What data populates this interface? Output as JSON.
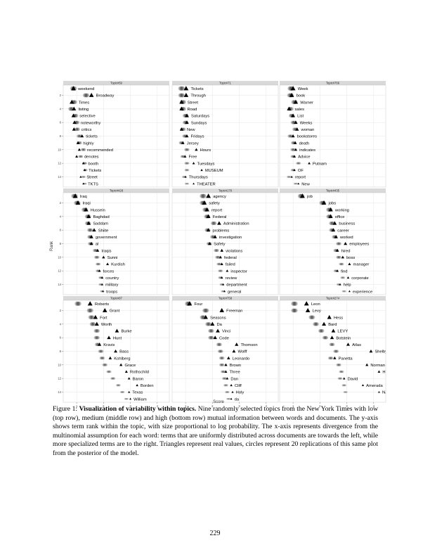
{
  "page": {
    "number": "229"
  },
  "caption": {
    "label": "Figure 1:",
    "bold": "Visualization of variability within topics.",
    "text": "Nine randomly selected topics from the New York Times with low (top row), medium (middle row) and high (bottom row) mutual information between words and documents. The y-axis shows term rank within the topic, with size proportional to log probability. The x-axis represents divergence from the multinomial assumption for each word: terms that are uniformly distributed across documents are towards the left, while more specialized terms are to the right. Triangles represent real values, circles represent 20 replications of this same plot from the posterior of the model."
  },
  "chart_data": {
    "type": "scatter",
    "xlabel": "Score",
    "ylabel": "Rank",
    "xticks": [
      "1",
      "2",
      "3",
      "4"
    ],
    "yticks": [
      "2",
      "4",
      "6",
      "8",
      "10",
      "12",
      "14"
    ],
    "xlim": [
      0.5,
      4.45
    ],
    "ylim": [
      0.5,
      15.5
    ],
    "grid": true,
    "facet_strip_color": "#d9d9d9",
    "panel_background": "#ffffff",
    "grid_color": "#e6e6e6",
    "marker_color": "#000000",
    "panels": [
      {
        "title": "Topic#59",
        "terms": [
          {
            "rank": 1,
            "term": "weekend",
            "real": 0.88,
            "reps": 0.88
          },
          {
            "rank": 2,
            "term": "Broadway",
            "real": 1.55,
            "reps": 1.35
          },
          {
            "rank": 3,
            "term": "Times",
            "real": 0.82,
            "reps": 0.9
          },
          {
            "rank": 4,
            "term": "listing",
            "real": 0.9,
            "reps": 0.8
          },
          {
            "rank": 5,
            "term": "selective",
            "real": 0.88,
            "reps": 0.95
          },
          {
            "rank": 6,
            "term": "noteworthy",
            "real": 0.92,
            "reps": 1.0
          },
          {
            "rank": 7,
            "term": "critics",
            "real": 0.9,
            "reps": 1.02
          },
          {
            "rank": 8,
            "term": "tickets",
            "real": 1.2,
            "reps": 1.1
          },
          {
            "rank": 9,
            "term": "highly",
            "real": 1.05,
            "reps": 1.1
          },
          {
            "rank": 10,
            "term": "recommended",
            "real": 1.1,
            "reps": 1.25
          },
          {
            "rank": 11,
            "term": "denotes",
            "real": 1.0,
            "reps": 1.15
          },
          {
            "rank": 12,
            "term": "booth",
            "real": 1.25,
            "reps": 1.3
          },
          {
            "rank": 13,
            "term": "Tickets",
            "real": 1.3,
            "reps": 1.32
          },
          {
            "rank": 14,
            "term": "Street",
            "real": 1.15,
            "reps": 1.25
          },
          {
            "rank": 15,
            "term": "TKTS",
            "real": 1.25,
            "reps": 1.3
          }
        ]
      },
      {
        "title": "Topic#71",
        "terms": [
          {
            "rank": 1,
            "term": "Tickets",
            "real": 1.02,
            "reps": 0.85
          },
          {
            "rank": 2,
            "term": "Through",
            "real": 1.02,
            "reps": 0.85
          },
          {
            "rank": 3,
            "term": "Street",
            "real": 0.85,
            "reps": 0.9
          },
          {
            "rank": 4,
            "term": "Road",
            "real": 0.85,
            "reps": 0.9
          },
          {
            "rank": 5,
            "term": "Saturdays",
            "real": 1.05,
            "reps": 1.0
          },
          {
            "rank": 6,
            "term": "Sundays",
            "real": 1.05,
            "reps": 1.0
          },
          {
            "rank": 7,
            "term": "New",
            "real": 0.85,
            "reps": 0.9
          },
          {
            "rank": 8,
            "term": "Fridays",
            "real": 1.05,
            "reps": 0.98
          },
          {
            "rank": 9,
            "term": "Jersey",
            "real": 0.9,
            "reps": 0.85
          },
          {
            "rank": 10,
            "term": "Hours",
            "real": 1.4,
            "reps": 1.05
          },
          {
            "rank": 11,
            "term": "Free",
            "real": 0.98,
            "reps": 0.9
          },
          {
            "rank": 12,
            "term": "Tuesdays",
            "real": 1.3,
            "reps": 1.05
          },
          {
            "rank": 13,
            "term": "MUSEUM",
            "real": 1.6,
            "reps": 1.05
          },
          {
            "rank": 14,
            "term": "Thursdays",
            "real": 1.0,
            "reps": 0.95
          },
          {
            "rank": 15,
            "term": "THEATER",
            "real": 1.3,
            "reps": 1.05
          }
        ]
      },
      {
        "title": "Topic#766",
        "terms": [
          {
            "rank": 1,
            "term": "Week",
            "real": 1.0,
            "reps": 0.92
          },
          {
            "rank": 2,
            "term": "book",
            "real": 0.95,
            "reps": 0.9
          },
          {
            "rank": 3,
            "term": "Warner",
            "real": 1.1,
            "reps": 1.05
          },
          {
            "rank": 4,
            "term": "sales",
            "real": 0.85,
            "reps": 0.9
          },
          {
            "rank": 5,
            "term": "List",
            "real": 1.0,
            "reps": 0.95
          },
          {
            "rank": 6,
            "term": "Weeks",
            "real": 1.1,
            "reps": 1.02
          },
          {
            "rank": 7,
            "term": "woman",
            "real": 1.15,
            "reps": 1.08
          },
          {
            "rank": 8,
            "term": "bookstores",
            "real": 1.0,
            "reps": 0.9
          },
          {
            "rank": 9,
            "term": "death",
            "real": 1.08,
            "reps": 1.02
          },
          {
            "rank": 10,
            "term": "indicates",
            "real": 1.1,
            "reps": 1.0
          },
          {
            "rank": 11,
            "term": "Advice",
            "real": 1.05,
            "reps": 1.0
          },
          {
            "rank": 12,
            "term": "Putnam",
            "real": 1.6,
            "reps": 1.2
          },
          {
            "rank": 13,
            "term": "OF",
            "real": 1.05,
            "reps": 1.0
          },
          {
            "rank": 14,
            "term": "report",
            "real": 0.95,
            "reps": 0.85
          },
          {
            "rank": 15,
            "term": "New",
            "real": 1.2,
            "reps": 1.1
          }
        ]
      },
      {
        "title": "Topic#428",
        "terms": [
          {
            "rank": 1,
            "term": "Iraq",
            "real": 0.95,
            "reps": 0.92
          },
          {
            "rank": 2,
            "term": "Iraqi",
            "real": 1.05,
            "reps": 1.02
          },
          {
            "rank": 3,
            "term": "Hussein",
            "real": 1.35,
            "reps": 1.3
          },
          {
            "rank": 4,
            "term": "Baghdad",
            "real": 1.45,
            "reps": 1.42
          },
          {
            "rank": 5,
            "term": "Saddam",
            "real": 1.45,
            "reps": 1.42
          },
          {
            "rank": 6,
            "term": "Shiite",
            "real": 1.65,
            "reps": 1.5
          },
          {
            "rank": 7,
            "term": "government",
            "real": 1.55,
            "reps": 1.5
          },
          {
            "rank": 8,
            "term": "al",
            "real": 1.55,
            "reps": 1.52
          },
          {
            "rank": 9,
            "term": "Iraqis",
            "real": 1.78,
            "reps": 1.7
          },
          {
            "rank": 10,
            "term": "Sunni",
            "real": 2.0,
            "reps": 1.75
          },
          {
            "rank": 11,
            "term": "Kurdish",
            "real": 2.15,
            "reps": 1.8
          },
          {
            "rank": 12,
            "term": "forces",
            "real": 1.85,
            "reps": 1.8
          },
          {
            "rank": 13,
            "term": "country",
            "real": 1.95,
            "reps": 1.9
          },
          {
            "rank": 14,
            "term": "military",
            "real": 1.95,
            "reps": 1.9
          },
          {
            "rank": 15,
            "term": "troops",
            "real": 1.98,
            "reps": 1.95
          }
        ]
      },
      {
        "title": "Topic#176",
        "terms": [
          {
            "rank": 1,
            "term": "agency",
            "real": 1.85,
            "reps": 1.65
          },
          {
            "rank": 2,
            "term": "safety",
            "real": 1.7,
            "reps": 1.65
          },
          {
            "rank": 3,
            "term": "report",
            "real": 1.8,
            "reps": 1.75
          },
          {
            "rank": 4,
            "term": "Federal",
            "real": 1.85,
            "reps": 1.8
          },
          {
            "rank": 5,
            "term": "Administration",
            "real": 2.25,
            "reps": 2.05
          },
          {
            "rank": 6,
            "term": "problems",
            "real": 1.85,
            "reps": 1.82
          },
          {
            "rank": 7,
            "term": "investigation",
            "real": 2.1,
            "reps": 2.02
          },
          {
            "rank": 8,
            "term": "Safety",
            "real": 1.9,
            "reps": 1.88
          },
          {
            "rank": 9,
            "term": "violations",
            "real": 2.35,
            "reps": 2.15
          },
          {
            "rank": 10,
            "term": "federal",
            "real": 2.3,
            "reps": 2.2
          },
          {
            "rank": 11,
            "term": "failed",
            "real": 2.35,
            "reps": 2.25
          },
          {
            "rank": 12,
            "term": "inspector",
            "real": 2.55,
            "reps": 2.3
          },
          {
            "rank": 13,
            "term": "review",
            "real": 2.35,
            "reps": 2.3
          },
          {
            "rank": 14,
            "term": "department",
            "real": 2.4,
            "reps": 2.35
          },
          {
            "rank": 15,
            "term": "general",
            "real": 2.45,
            "reps": 2.4
          }
        ]
      },
      {
        "title": "Topic#435",
        "terms": [
          {
            "rank": 1,
            "term": "job",
            "real": 1.35,
            "reps": 1.3
          },
          {
            "rank": 2,
            "term": "jobs",
            "real": 2.15,
            "reps": 2.1
          },
          {
            "rank": 3,
            "term": "working",
            "real": 2.4,
            "reps": 2.35
          },
          {
            "rank": 4,
            "term": "office",
            "real": 2.4,
            "reps": 2.35
          },
          {
            "rank": 5,
            "term": "business",
            "real": 2.55,
            "reps": 2.45
          },
          {
            "rank": 6,
            "term": "career",
            "real": 2.5,
            "reps": 2.45
          },
          {
            "rank": 7,
            "term": "worked",
            "real": 2.6,
            "reps": 2.55
          },
          {
            "rank": 8,
            "term": "employees",
            "real": 2.95,
            "reps": 2.7
          },
          {
            "rank": 9,
            "term": "hired",
            "real": 2.65,
            "reps": 2.6
          },
          {
            "rank": 10,
            "term": "boss",
            "real": 2.85,
            "reps": 2.7
          },
          {
            "rank": 11,
            "term": "manager",
            "real": 3.1,
            "reps": 2.8
          },
          {
            "rank": 12,
            "term": "find",
            "real": 2.65,
            "reps": 2.6
          },
          {
            "rank": 13,
            "term": "corporate",
            "real": 3.05,
            "reps": 2.85
          },
          {
            "rank": 14,
            "term": "help",
            "real": 2.75,
            "reps": 2.7
          },
          {
            "rank": 15,
            "term": "experience",
            "real": 3.1,
            "reps": 2.9
          }
        ]
      },
      {
        "title": "Topic#87",
        "terms": [
          {
            "rank": 1,
            "term": "Roberts",
            "real": 1.5,
            "reps": 1.05
          },
          {
            "rank": 2,
            "term": "Grant",
            "real": 2.05,
            "reps": 1.5
          },
          {
            "rank": 3,
            "term": "Fort",
            "real": 1.7,
            "reps": 1.55
          },
          {
            "rank": 4,
            "term": "Worth",
            "real": 1.75,
            "reps": 1.6
          },
          {
            "rank": 5,
            "term": "Burke",
            "real": 2.5,
            "reps": 1.75
          },
          {
            "rank": 6,
            "term": "Hunt",
            "real": 2.2,
            "reps": 1.75
          },
          {
            "rank": 7,
            "term": "Kravis",
            "real": 1.85,
            "reps": 1.78
          },
          {
            "rank": 8,
            "term": "Bass",
            "real": 2.45,
            "reps": 1.9
          },
          {
            "rank": 9,
            "term": "Kohlberg",
            "real": 2.25,
            "reps": 1.95
          },
          {
            "rank": 10,
            "term": "Grace",
            "real": 2.65,
            "reps": 2.05
          },
          {
            "rank": 11,
            "term": "Rothschild",
            "real": 2.85,
            "reps": 2.2
          },
          {
            "rank": 12,
            "term": "Baron",
            "real": 2.95,
            "reps": 2.35
          },
          {
            "rank": 13,
            "term": "Borden",
            "real": 3.25,
            "reps": 2.55
          },
          {
            "rank": 14,
            "term": "Texas",
            "real": 2.95,
            "reps": 2.7
          },
          {
            "rank": 15,
            "term": "William",
            "real": 3.0,
            "reps": 2.85
          }
        ]
      },
      {
        "title": "Topic#758",
        "terms": [
          {
            "rank": 1,
            "term": "Four",
            "real": 1.15,
            "reps": 1.1
          },
          {
            "rank": 2,
            "term": "Freeman",
            "real": 2.35,
            "reps": 1.75
          },
          {
            "rank": 3,
            "term": "Seasons",
            "real": 1.75,
            "reps": 1.65
          },
          {
            "rank": 4,
            "term": "Da",
            "real": 2.0,
            "reps": 1.85
          },
          {
            "rank": 5,
            "term": "Vinci",
            "real": 2.2,
            "reps": 1.95
          },
          {
            "rank": 6,
            "term": "Code",
            "real": 2.1,
            "reps": 1.95
          },
          {
            "rank": 7,
            "term": "Thomson",
            "real": 2.9,
            "reps": 2.25
          },
          {
            "rank": 8,
            "term": "Wolff",
            "real": 2.8,
            "reps": 2.3
          },
          {
            "rank": 9,
            "term": "Leonardo",
            "real": 2.6,
            "reps": 2.35
          },
          {
            "rank": 10,
            "term": "Brown",
            "real": 2.5,
            "reps": 2.35
          },
          {
            "rank": 11,
            "term": "Three",
            "real": 2.5,
            "reps": 2.4
          },
          {
            "rank": 12,
            "term": "Dan",
            "real": 2.55,
            "reps": 2.45
          },
          {
            "rank": 13,
            "term": "Cliff",
            "real": 2.7,
            "reps": 2.5
          },
          {
            "rank": 14,
            "term": "Holy",
            "real": 2.75,
            "reps": 2.55
          },
          {
            "rank": 15,
            "term": "da",
            "real": 2.7,
            "reps": 2.6
          }
        ]
      },
      {
        "title": "Topic#274",
        "terms": [
          {
            "rank": 1,
            "term": "Leon",
            "real": 1.5,
            "reps": 1.05
          },
          {
            "rank": 2,
            "term": "Levy",
            "real": 1.55,
            "reps": 1.05
          },
          {
            "rank": 3,
            "term": "Hess",
            "real": 2.35,
            "reps": 1.7
          },
          {
            "rank": 4,
            "term": "Bard",
            "real": 2.15,
            "reps": 1.85
          },
          {
            "rank": 5,
            "term": "LEVY",
            "real": 2.5,
            "reps": 2.05
          },
          {
            "rank": 6,
            "term": "Botstein",
            "real": 2.45,
            "reps": 2.2
          },
          {
            "rank": 7,
            "term": "Atlas",
            "real": 3.05,
            "reps": 2.45
          },
          {
            "rank": 8,
            "term": "Shelby",
            "real": 3.9,
            "reps": 2.6
          },
          {
            "rank": 9,
            "term": "Panetta",
            "real": 2.55,
            "reps": 2.4
          },
          {
            "rank": 10,
            "term": "Norman",
            "real": 3.75,
            "reps": 2.7
          },
          {
            "rank": 11,
            "term": "HESS",
            "real": 4.2,
            "reps": 2.8
          },
          {
            "rank": 12,
            "term": "David",
            "real": 2.9,
            "reps": 2.75
          },
          {
            "rank": 13,
            "term": "Amerada",
            "real": 3.6,
            "reps": 2.9
          },
          {
            "rank": 14,
            "term": "NJ",
            "real": 4.2,
            "reps": 2.95
          }
        ]
      }
    ]
  }
}
